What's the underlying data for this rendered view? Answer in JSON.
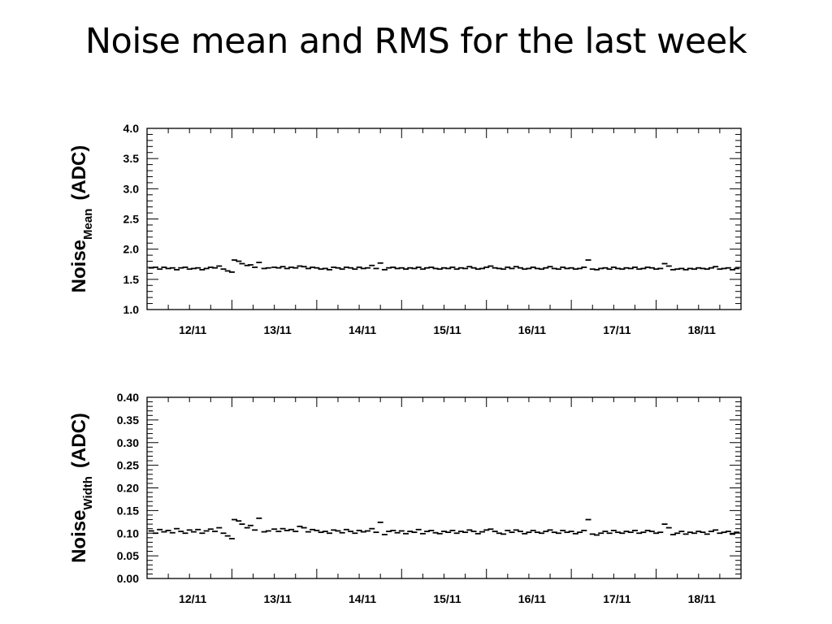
{
  "title": "Noise mean and RMS for the last week",
  "chart_data": [
    {
      "type": "scatter",
      "ylabel_main": "Noise",
      "ylabel_sub": "Mean",
      "ylabel_unit": "(ADC)",
      "ylim": [
        1.0,
        4.0
      ],
      "yticks": [
        "1.0",
        "1.5",
        "2.0",
        "2.5",
        "3.0",
        "3.5",
        "4.0"
      ],
      "ytick_values": [
        1.0,
        1.5,
        2.0,
        2.5,
        3.0,
        3.5,
        4.0
      ],
      "xlim": [
        0,
        7
      ],
      "xticks": [
        "12/11",
        "13/11",
        "14/11",
        "15/11",
        "16/11",
        "17/11",
        "18/11"
      ],
      "xtick_values": [
        0.5,
        1.5,
        2.5,
        3.5,
        4.5,
        5.5,
        6.5
      ],
      "grid": false,
      "baseline": 1.68,
      "points": [
        [
          0.05,
          1.69
        ],
        [
          0.1,
          1.7
        ],
        [
          0.15,
          1.67
        ],
        [
          0.2,
          1.7
        ],
        [
          0.25,
          1.68
        ],
        [
          0.3,
          1.69
        ],
        [
          0.35,
          1.66
        ],
        [
          0.4,
          1.69
        ],
        [
          0.45,
          1.7
        ],
        [
          0.5,
          1.67
        ],
        [
          0.55,
          1.68
        ],
        [
          0.6,
          1.69
        ],
        [
          0.65,
          1.66
        ],
        [
          0.7,
          1.68
        ],
        [
          0.75,
          1.7
        ],
        [
          0.8,
          1.69
        ],
        [
          0.85,
          1.72
        ],
        [
          0.9,
          1.67
        ],
        [
          0.95,
          1.64
        ],
        [
          1.0,
          1.62
        ],
        [
          1.03,
          1.82
        ],
        [
          1.08,
          1.8
        ],
        [
          1.12,
          1.76
        ],
        [
          1.18,
          1.73
        ],
        [
          1.22,
          1.74
        ],
        [
          1.27,
          1.7
        ],
        [
          1.32,
          1.78
        ],
        [
          1.38,
          1.68
        ],
        [
          1.43,
          1.69
        ],
        [
          1.5,
          1.7
        ],
        [
          1.55,
          1.69
        ],
        [
          1.6,
          1.71
        ],
        [
          1.65,
          1.68
        ],
        [
          1.7,
          1.7
        ],
        [
          1.75,
          1.69
        ],
        [
          1.8,
          1.72
        ],
        [
          1.85,
          1.71
        ],
        [
          1.9,
          1.68
        ],
        [
          1.95,
          1.7
        ],
        [
          2.0,
          1.69
        ],
        [
          2.05,
          1.67
        ],
        [
          2.1,
          1.68
        ],
        [
          2.15,
          1.66
        ],
        [
          2.2,
          1.7
        ],
        [
          2.25,
          1.69
        ],
        [
          2.3,
          1.67
        ],
        [
          2.35,
          1.7
        ],
        [
          2.4,
          1.69
        ],
        [
          2.45,
          1.67
        ],
        [
          2.5,
          1.7
        ],
        [
          2.55,
          1.68
        ],
        [
          2.6,
          1.69
        ],
        [
          2.65,
          1.73
        ],
        [
          2.7,
          1.68
        ],
        [
          2.75,
          1.77
        ],
        [
          2.8,
          1.66
        ],
        [
          2.85,
          1.69
        ],
        [
          2.9,
          1.7
        ],
        [
          2.95,
          1.68
        ],
        [
          3.0,
          1.69
        ],
        [
          3.05,
          1.67
        ],
        [
          3.1,
          1.69
        ],
        [
          3.15,
          1.68
        ],
        [
          3.2,
          1.7
        ],
        [
          3.25,
          1.67
        ],
        [
          3.3,
          1.69
        ],
        [
          3.35,
          1.7
        ],
        [
          3.4,
          1.68
        ],
        [
          3.45,
          1.67
        ],
        [
          3.5,
          1.69
        ],
        [
          3.55,
          1.68
        ],
        [
          3.6,
          1.7
        ],
        [
          3.65,
          1.67
        ],
        [
          3.7,
          1.69
        ],
        [
          3.75,
          1.68
        ],
        [
          3.8,
          1.71
        ],
        [
          3.85,
          1.69
        ],
        [
          3.9,
          1.67
        ],
        [
          3.95,
          1.68
        ],
        [
          4.0,
          1.7
        ],
        [
          4.05,
          1.72
        ],
        [
          4.1,
          1.69
        ],
        [
          4.15,
          1.68
        ],
        [
          4.2,
          1.67
        ],
        [
          4.25,
          1.7
        ],
        [
          4.3,
          1.68
        ],
        [
          4.35,
          1.71
        ],
        [
          4.4,
          1.69
        ],
        [
          4.45,
          1.67
        ],
        [
          4.5,
          1.68
        ],
        [
          4.55,
          1.7
        ],
        [
          4.6,
          1.68
        ],
        [
          4.65,
          1.67
        ],
        [
          4.7,
          1.69
        ],
        [
          4.75,
          1.71
        ],
        [
          4.8,
          1.68
        ],
        [
          4.85,
          1.67
        ],
        [
          4.9,
          1.7
        ],
        [
          4.95,
          1.68
        ],
        [
          5.0,
          1.69
        ],
        [
          5.05,
          1.67
        ],
        [
          5.1,
          1.68
        ],
        [
          5.15,
          1.7
        ],
        [
          5.2,
          1.82
        ],
        [
          5.25,
          1.67
        ],
        [
          5.3,
          1.66
        ],
        [
          5.35,
          1.68
        ],
        [
          5.4,
          1.69
        ],
        [
          5.45,
          1.67
        ],
        [
          5.5,
          1.7
        ],
        [
          5.55,
          1.68
        ],
        [
          5.6,
          1.67
        ],
        [
          5.65,
          1.69
        ],
        [
          5.7,
          1.68
        ],
        [
          5.75,
          1.7
        ],
        [
          5.8,
          1.67
        ],
        [
          5.85,
          1.68
        ],
        [
          5.9,
          1.7
        ],
        [
          5.95,
          1.69
        ],
        [
          6.0,
          1.67
        ],
        [
          6.05,
          1.68
        ],
        [
          6.1,
          1.76
        ],
        [
          6.15,
          1.72
        ],
        [
          6.2,
          1.66
        ],
        [
          6.25,
          1.67
        ],
        [
          6.3,
          1.68
        ],
        [
          6.35,
          1.66
        ],
        [
          6.4,
          1.68
        ],
        [
          6.45,
          1.67
        ],
        [
          6.5,
          1.69
        ],
        [
          6.55,
          1.68
        ],
        [
          6.6,
          1.67
        ],
        [
          6.65,
          1.69
        ],
        [
          6.7,
          1.71
        ],
        [
          6.75,
          1.67
        ],
        [
          6.8,
          1.68
        ],
        [
          6.85,
          1.69
        ],
        [
          6.9,
          1.66
        ],
        [
          6.95,
          1.68
        ]
      ]
    },
    {
      "type": "scatter",
      "ylabel_main": "Noise",
      "ylabel_sub": "Width",
      "ylabel_unit": "(ADC)",
      "ylim": [
        0.0,
        0.4
      ],
      "yticks": [
        "0.00",
        "0.05",
        "0.10",
        "0.15",
        "0.20",
        "0.25",
        "0.30",
        "0.35",
        "0.40"
      ],
      "ytick_values": [
        0.0,
        0.05,
        0.1,
        0.15,
        0.2,
        0.25,
        0.3,
        0.35,
        0.4
      ],
      "xlim": [
        0,
        7
      ],
      "xticks": [
        "12/11",
        "13/11",
        "14/11",
        "15/11",
        "16/11",
        "17/11",
        "18/11"
      ],
      "xtick_values": [
        0.5,
        1.5,
        2.5,
        3.5,
        4.5,
        5.5,
        6.5
      ],
      "grid": false,
      "points": [
        [
          0.05,
          0.105
        ],
        [
          0.1,
          0.1
        ],
        [
          0.15,
          0.108
        ],
        [
          0.2,
          0.103
        ],
        [
          0.25,
          0.106
        ],
        [
          0.3,
          0.101
        ],
        [
          0.35,
          0.11
        ],
        [
          0.4,
          0.104
        ],
        [
          0.45,
          0.1
        ],
        [
          0.5,
          0.107
        ],
        [
          0.55,
          0.103
        ],
        [
          0.6,
          0.108
        ],
        [
          0.65,
          0.1
        ],
        [
          0.7,
          0.105
        ],
        [
          0.75,
          0.109
        ],
        [
          0.8,
          0.104
        ],
        [
          0.85,
          0.112
        ],
        [
          0.9,
          0.1
        ],
        [
          0.95,
          0.094
        ],
        [
          1.0,
          0.088
        ],
        [
          1.03,
          0.13
        ],
        [
          1.08,
          0.127
        ],
        [
          1.12,
          0.12
        ],
        [
          1.18,
          0.112
        ],
        [
          1.22,
          0.117
        ],
        [
          1.27,
          0.107
        ],
        [
          1.32,
          0.133
        ],
        [
          1.38,
          0.103
        ],
        [
          1.43,
          0.105
        ],
        [
          1.5,
          0.109
        ],
        [
          1.55,
          0.104
        ],
        [
          1.6,
          0.11
        ],
        [
          1.65,
          0.106
        ],
        [
          1.7,
          0.108
        ],
        [
          1.75,
          0.104
        ],
        [
          1.8,
          0.115
        ],
        [
          1.85,
          0.112
        ],
        [
          1.9,
          0.103
        ],
        [
          1.95,
          0.108
        ],
        [
          2.0,
          0.106
        ],
        [
          2.05,
          0.102
        ],
        [
          2.1,
          0.104
        ],
        [
          2.15,
          0.1
        ],
        [
          2.2,
          0.107
        ],
        [
          2.25,
          0.105
        ],
        [
          2.3,
          0.101
        ],
        [
          2.35,
          0.108
        ],
        [
          2.4,
          0.104
        ],
        [
          2.45,
          0.1
        ],
        [
          2.5,
          0.106
        ],
        [
          2.55,
          0.103
        ],
        [
          2.6,
          0.105
        ],
        [
          2.65,
          0.11
        ],
        [
          2.7,
          0.102
        ],
        [
          2.75,
          0.124
        ],
        [
          2.8,
          0.097
        ],
        [
          2.85,
          0.104
        ],
        [
          2.9,
          0.106
        ],
        [
          2.95,
          0.101
        ],
        [
          3.0,
          0.105
        ],
        [
          3.05,
          0.099
        ],
        [
          3.1,
          0.104
        ],
        [
          3.15,
          0.102
        ],
        [
          3.2,
          0.108
        ],
        [
          3.25,
          0.099
        ],
        [
          3.3,
          0.104
        ],
        [
          3.35,
          0.106
        ],
        [
          3.4,
          0.101
        ],
        [
          3.45,
          0.099
        ],
        [
          3.5,
          0.104
        ],
        [
          3.55,
          0.102
        ],
        [
          3.6,
          0.106
        ],
        [
          3.65,
          0.1
        ],
        [
          3.7,
          0.104
        ],
        [
          3.75,
          0.102
        ],
        [
          3.8,
          0.107
        ],
        [
          3.85,
          0.104
        ],
        [
          3.9,
          0.099
        ],
        [
          3.95,
          0.103
        ],
        [
          4.0,
          0.107
        ],
        [
          4.05,
          0.109
        ],
        [
          4.1,
          0.104
        ],
        [
          4.15,
          0.1
        ],
        [
          4.2,
          0.098
        ],
        [
          4.25,
          0.106
        ],
        [
          4.3,
          0.102
        ],
        [
          4.35,
          0.107
        ],
        [
          4.4,
          0.104
        ],
        [
          4.45,
          0.099
        ],
        [
          4.5,
          0.102
        ],
        [
          4.55,
          0.106
        ],
        [
          4.6,
          0.102
        ],
        [
          4.65,
          0.1
        ],
        [
          4.7,
          0.104
        ],
        [
          4.75,
          0.107
        ],
        [
          4.8,
          0.102
        ],
        [
          4.85,
          0.1
        ],
        [
          4.9,
          0.106
        ],
        [
          4.95,
          0.102
        ],
        [
          5.0,
          0.104
        ],
        [
          5.05,
          0.099
        ],
        [
          5.1,
          0.102
        ],
        [
          5.15,
          0.106
        ],
        [
          5.2,
          0.13
        ],
        [
          5.25,
          0.098
        ],
        [
          5.3,
          0.096
        ],
        [
          5.35,
          0.1
        ],
        [
          5.4,
          0.104
        ],
        [
          5.45,
          0.1
        ],
        [
          5.5,
          0.106
        ],
        [
          5.55,
          0.102
        ],
        [
          5.6,
          0.1
        ],
        [
          5.65,
          0.104
        ],
        [
          5.7,
          0.102
        ],
        [
          5.75,
          0.106
        ],
        [
          5.8,
          0.1
        ],
        [
          5.85,
          0.102
        ],
        [
          5.9,
          0.106
        ],
        [
          5.95,
          0.104
        ],
        [
          6.0,
          0.1
        ],
        [
          6.05,
          0.102
        ],
        [
          6.1,
          0.12
        ],
        [
          6.15,
          0.112
        ],
        [
          6.2,
          0.097
        ],
        [
          6.25,
          0.1
        ],
        [
          6.3,
          0.104
        ],
        [
          6.35,
          0.098
        ],
        [
          6.4,
          0.102
        ],
        [
          6.45,
          0.1
        ],
        [
          6.5,
          0.104
        ],
        [
          6.55,
          0.102
        ],
        [
          6.6,
          0.098
        ],
        [
          6.65,
          0.104
        ],
        [
          6.7,
          0.107
        ],
        [
          6.75,
          0.1
        ],
        [
          6.8,
          0.102
        ],
        [
          6.85,
          0.104
        ],
        [
          6.9,
          0.098
        ],
        [
          6.95,
          0.102
        ]
      ]
    }
  ]
}
